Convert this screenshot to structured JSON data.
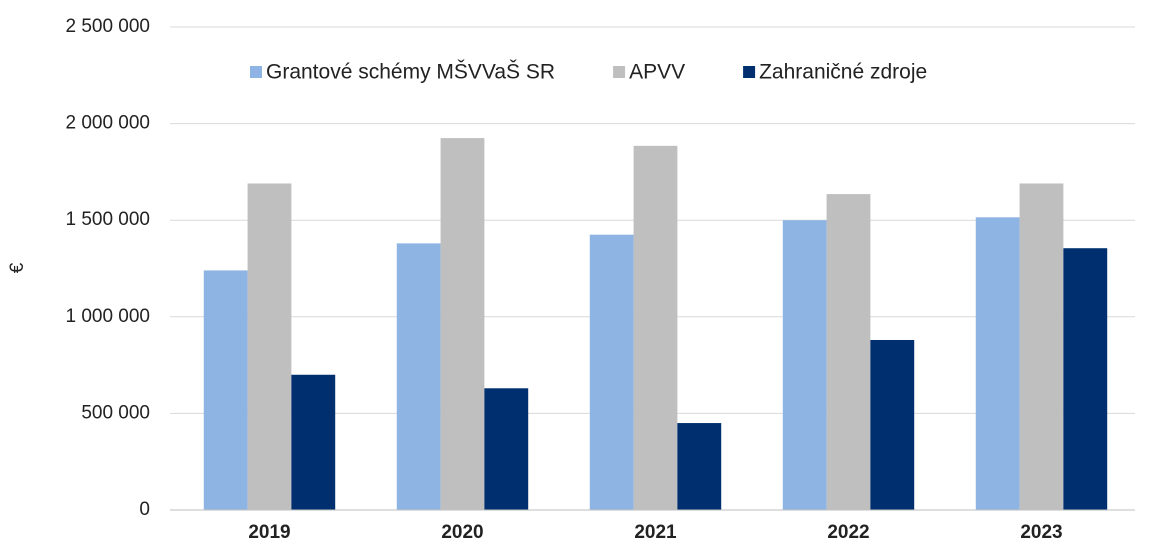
{
  "chart_data": {
    "type": "bar",
    "y_label": "€",
    "categories": [
      "2019",
      "2020",
      "2021",
      "2022",
      "2023"
    ],
    "series": [
      {
        "name": "Grantové schémy MŠVVaŠ SR",
        "color": "#8eb4e3",
        "values": [
          1240000,
          1380000,
          1425000,
          1500000,
          1515000
        ]
      },
      {
        "name": "APVV",
        "color": "#bfbfbf",
        "values": [
          1690000,
          1925000,
          1885000,
          1635000,
          1690000
        ]
      },
      {
        "name": "Zahraničné zdroje",
        "color": "#002f6f",
        "values": [
          700000,
          630000,
          450000,
          880000,
          1355000
        ]
      }
    ],
    "ylim": [
      0,
      2500000
    ],
    "yticks": [
      0,
      {
        "value": 500000,
        "label": "500 000"
      },
      {
        "value": 1000000,
        "label": "1 000 000"
      },
      {
        "value": 1500000,
        "label": "1 500 000"
      },
      {
        "value": 2000000,
        "label": "2 000 000"
      },
      {
        "value": 2500000,
        "label": "2 500 000"
      }
    ],
    "grid": true,
    "legend": "top"
  }
}
